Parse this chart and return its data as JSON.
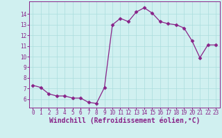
{
  "x": [
    0,
    1,
    2,
    3,
    4,
    5,
    6,
    7,
    8,
    9,
    10,
    11,
    12,
    13,
    14,
    15,
    16,
    17,
    18,
    19,
    20,
    21,
    22,
    23
  ],
  "y": [
    7.3,
    7.1,
    6.5,
    6.3,
    6.3,
    6.1,
    6.1,
    5.7,
    5.6,
    7.1,
    13.0,
    13.6,
    13.3,
    14.2,
    14.6,
    14.1,
    13.3,
    13.1,
    13.0,
    12.7,
    11.5,
    9.9,
    11.1,
    11.1
  ],
  "line_color": "#882288",
  "marker": "D",
  "markersize": 2.5,
  "linewidth": 0.9,
  "bg_color": "#d0f0f0",
  "grid_color": "#aadddd",
  "xlabel": "Windchill (Refroidissement éolien,°C)",
  "xlabel_fontsize": 7,
  "xtick_fontsize": 5.5,
  "ytick_fontsize": 5.5,
  "xlim": [
    -0.5,
    23.5
  ],
  "ylim": [
    5.2,
    15.2
  ],
  "yticks": [
    6,
    7,
    8,
    9,
    10,
    11,
    12,
    13,
    14
  ],
  "xticks": [
    0,
    1,
    2,
    3,
    4,
    5,
    6,
    7,
    8,
    9,
    10,
    11,
    12,
    13,
    14,
    15,
    16,
    17,
    18,
    19,
    20,
    21,
    22,
    23
  ]
}
